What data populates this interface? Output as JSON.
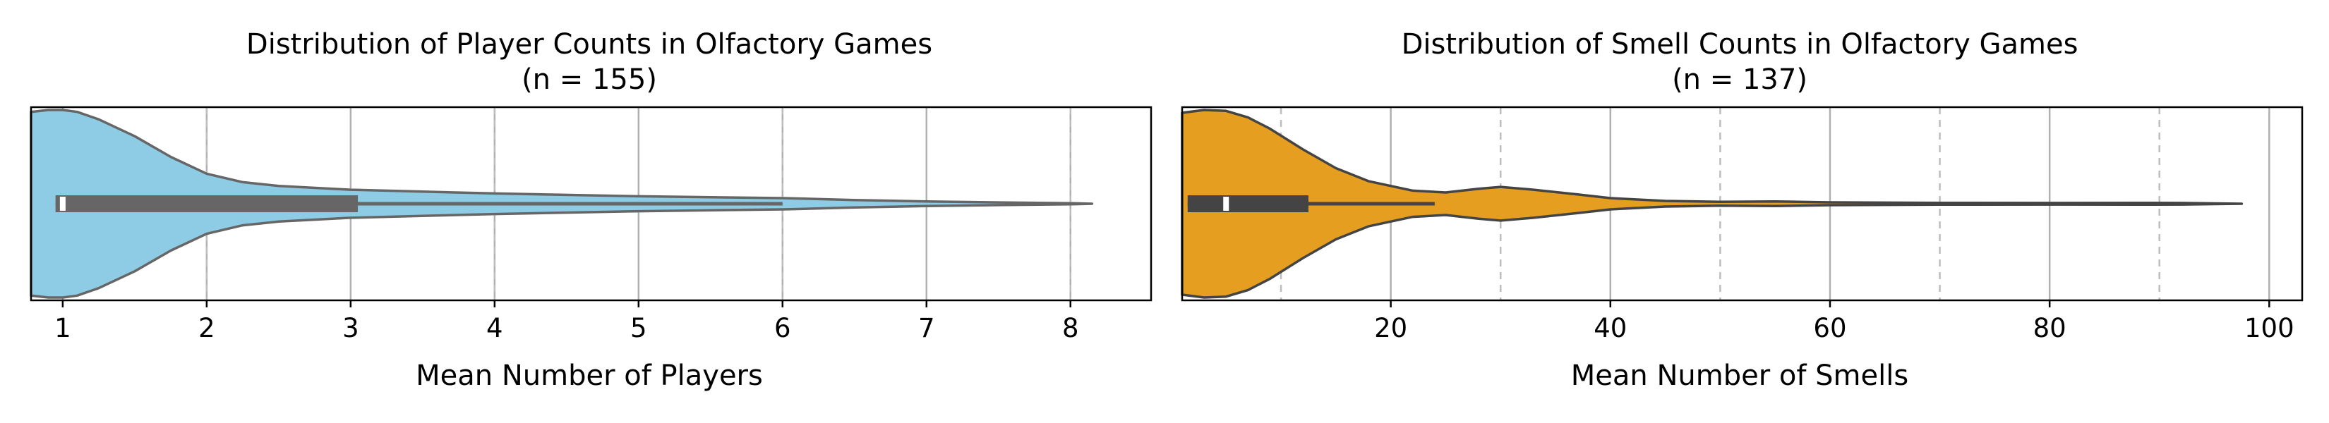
{
  "chart_data": [
    {
      "type": "violin",
      "title": "Distribution of Player Counts in Olfactory Games",
      "subtitle": "(n = 155)",
      "xlabel": "Mean Number of Players",
      "ylabel": "",
      "xlim": [
        0.78,
        8.56
      ],
      "xticks": [
        1,
        2,
        3,
        4,
        5,
        6,
        7,
        8
      ],
      "grid": {
        "x": true,
        "dashed_x": [
          2,
          4,
          6,
          8
        ]
      },
      "color": "#8ecce6",
      "edge_color": "#666666",
      "box": {
        "whisker_low": 0.95,
        "q1": 0.95,
        "median": 1.0,
        "q3": 3.05,
        "whisker_high": 6.0
      },
      "data_max": 8.15,
      "density_profile": [
        [
          0.78,
          0.98
        ],
        [
          0.9,
          1.0
        ],
        [
          1.0,
          1.0
        ],
        [
          1.1,
          0.98
        ],
        [
          1.25,
          0.9
        ],
        [
          1.5,
          0.72
        ],
        [
          1.75,
          0.5
        ],
        [
          2.0,
          0.32
        ],
        [
          2.25,
          0.23
        ],
        [
          2.5,
          0.19
        ],
        [
          3.0,
          0.15
        ],
        [
          4.0,
          0.11
        ],
        [
          5.0,
          0.08
        ],
        [
          6.0,
          0.06
        ],
        [
          6.5,
          0.04
        ],
        [
          7.0,
          0.025
        ],
        [
          7.5,
          0.014
        ],
        [
          8.0,
          0.006
        ],
        [
          8.15,
          0.0
        ]
      ]
    },
    {
      "type": "violin",
      "title": "Distribution of Smell Counts in Olfactory Games",
      "subtitle": "(n = 137)",
      "xlabel": "Mean Number of Smells",
      "ylabel": "",
      "xlim": [
        1.0,
        103.0
      ],
      "xticks": [
        20,
        40,
        60,
        80,
        100
      ],
      "grid": {
        "x": true,
        "dashed_x": [
          10,
          30,
          50,
          70,
          90
        ]
      },
      "color": "#e59e1f",
      "edge_color": "#444444",
      "box": {
        "whisker_low": 1.5,
        "q1": 1.5,
        "median": 5.0,
        "q3": 12.5,
        "whisker_high": 24.0
      },
      "data_max": 97.5,
      "density_profile": [
        [
          1.0,
          0.97
        ],
        [
          3.0,
          1.0
        ],
        [
          5.0,
          0.99
        ],
        [
          7.0,
          0.92
        ],
        [
          9.0,
          0.8
        ],
        [
          12.0,
          0.58
        ],
        [
          15.0,
          0.38
        ],
        [
          18.0,
          0.24
        ],
        [
          22.0,
          0.14
        ],
        [
          25.0,
          0.12
        ],
        [
          28.0,
          0.16
        ],
        [
          30.0,
          0.18
        ],
        [
          33.0,
          0.15
        ],
        [
          37.0,
          0.1
        ],
        [
          40.0,
          0.06
        ],
        [
          45.0,
          0.03
        ],
        [
          50.0,
          0.02
        ],
        [
          55.0,
          0.025
        ],
        [
          60.0,
          0.015
        ],
        [
          70.0,
          0.01
        ],
        [
          80.0,
          0.008
        ],
        [
          88.0,
          0.01
        ],
        [
          92.0,
          0.008
        ],
        [
          97.5,
          0.0
        ]
      ]
    }
  ]
}
